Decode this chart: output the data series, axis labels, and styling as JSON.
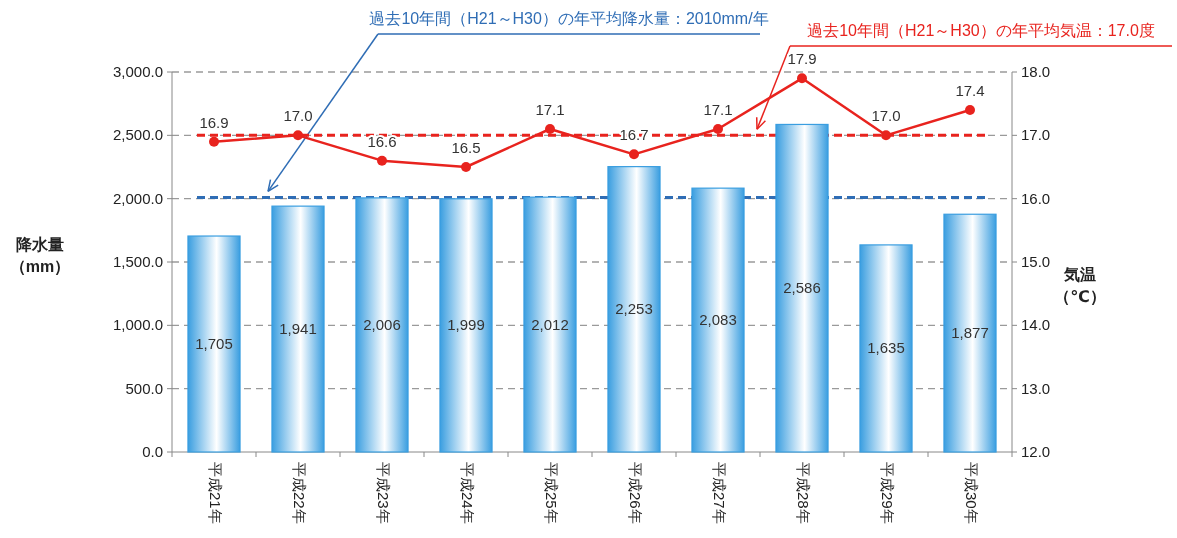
{
  "chart_data": {
    "type": "bar",
    "categories": [
      "平成21年",
      "平成22年",
      "平成23年",
      "平成24年",
      "平成25年",
      "平成26年",
      "平成27年",
      "平成28年",
      "平成29年",
      "平成30年"
    ],
    "ylabel": "降水量（mm）",
    "y2label": "気温（℃）",
    "ylim": [
      0,
      3000
    ],
    "yticks": [
      {
        "value": 0,
        "label": "0.0"
      },
      {
        "value": 500,
        "label": "500.0"
      },
      {
        "value": 1000,
        "label": "1,000.0"
      },
      {
        "value": 1500,
        "label": "1,500.0"
      },
      {
        "value": 2000,
        "label": "2,000.0"
      },
      {
        "value": 2500,
        "label": "2,500.0"
      },
      {
        "value": 3000,
        "label": "3,000.0"
      }
    ],
    "y2lim": [
      12,
      18
    ],
    "y2ticks": [
      {
        "value": 12,
        "label": "12.0"
      },
      {
        "value": 13,
        "label": "13.0"
      },
      {
        "value": 14,
        "label": "14.0"
      },
      {
        "value": 15,
        "label": "15.0"
      },
      {
        "value": 16,
        "label": "16.0"
      },
      {
        "value": 17,
        "label": "17.0"
      },
      {
        "value": 18,
        "label": "18.0"
      }
    ],
    "grid": "y",
    "marker": "circle",
    "series": [
      {
        "color": "#3a9ee0",
        "values": [
          1705,
          1941,
          2006,
          1999,
          2012,
          2253,
          2083,
          2586,
          1635,
          1877
        ],
        "value_labels": [
          "1,705",
          "1,941",
          "2,006",
          "1,999",
          "2,012",
          "2,253",
          "2,083",
          "2,586",
          "1,635",
          "1,877"
        ]
      },
      {
        "type": "line",
        "axis": "y2",
        "color": "#e8231e",
        "line_style": "solid",
        "values": [
          16.9,
          17.0,
          16.6,
          16.5,
          17.1,
          16.7,
          17.1,
          17.9,
          17.0,
          17.4
        ],
        "value_labels": [
          "16.9",
          "17.0",
          "16.6",
          "16.5",
          "17.1",
          "16.7",
          "17.1",
          "17.9",
          "17.0",
          "17.4"
        ]
      }
    ],
    "ref_lines": [
      {
        "axis": "y",
        "value": 2010,
        "color": "#2f6db5",
        "line_style": "dashed",
        "label": "過去10年間（H21～H30）の年平均降水量：2010mm/年"
      },
      {
        "axis": "y2",
        "value": 17.0,
        "color": "#e8231e",
        "line_style": "dashed",
        "label": "過去10年間（H21～H30）の年平均気温：17.0度"
      }
    ]
  }
}
